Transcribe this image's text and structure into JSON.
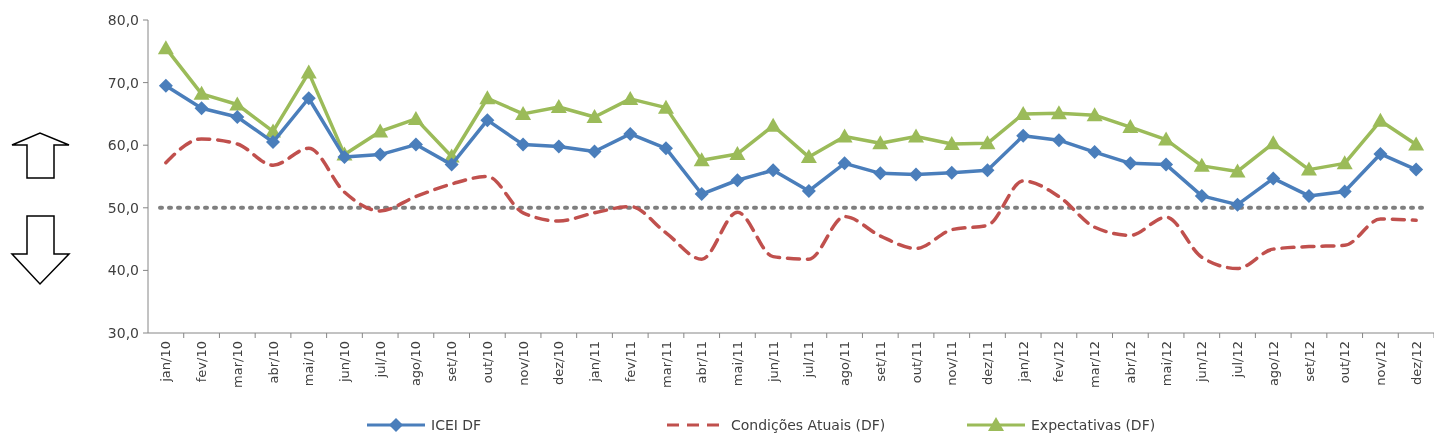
{
  "chart_data": {
    "type": "line",
    "categories": [
      "jan/10",
      "fev/10",
      "mar/10",
      "abr/10",
      "mai/10",
      "jun/10",
      "jul/10",
      "ago/10",
      "set/10",
      "out/10",
      "nov/10",
      "dez/10",
      "jan/11",
      "fev/11",
      "mar/11",
      "abr/11",
      "mai/11",
      "jun/11",
      "jul/11",
      "ago/11",
      "set/11",
      "out/11",
      "nov/11",
      "dez/11",
      "jan/12",
      "fev/12",
      "mar/12",
      "abr/12",
      "mai/12",
      "jun/12",
      "jul/12",
      "ago/12",
      "set/12",
      "out/12",
      "nov/12",
      "dez/12"
    ],
    "series": [
      {
        "name": "ICEI DF",
        "color": "#4a7ebb",
        "marker": "diamond",
        "line_style": "solid",
        "values": [
          69.5,
          65.9,
          64.5,
          60.5,
          67.5,
          58.1,
          58.5,
          60.1,
          56.9,
          64.0,
          60.1,
          59.8,
          59.0,
          61.8,
          59.5,
          52.2,
          54.4,
          56.0,
          52.7,
          57.1,
          55.5,
          55.3,
          55.6,
          56.0,
          61.5,
          60.8,
          58.9,
          57.1,
          56.9,
          51.9,
          50.5,
          54.7,
          51.9,
          52.6,
          58.6,
          56.1
        ]
      },
      {
        "name": "Condições Atuais (DF)",
        "color": "#c0504d",
        "marker": "none",
        "line_style": "dashed",
        "values": [
          57.2,
          61.0,
          60.2,
          56.8,
          59.5,
          52.5,
          49.5,
          51.8,
          53.8,
          55.0,
          49.2,
          47.9,
          49.2,
          50.2,
          46.0,
          41.8,
          49.3,
          42.2,
          41.8,
          48.6,
          45.5,
          43.5,
          46.5,
          47.2,
          54.3,
          51.8,
          46.9,
          45.6,
          48.5,
          42.1,
          40.3,
          43.4,
          43.8,
          44.0,
          48.2,
          48.0
        ]
      },
      {
        "name": "Expectativas (DF)",
        "color": "#9bbb59",
        "marker": "triangle",
        "line_style": "solid",
        "values": [
          75.5,
          68.2,
          66.5,
          62.2,
          71.6,
          58.5,
          62.2,
          64.2,
          58.2,
          67.5,
          65.0,
          66.1,
          64.5,
          67.4,
          66.0,
          57.6,
          58.6,
          63.1,
          58.1,
          61.4,
          60.3,
          61.4,
          60.2,
          60.3,
          65.0,
          65.1,
          64.8,
          62.9,
          60.9,
          56.7,
          55.8,
          60.3,
          56.1,
          57.1,
          63.9,
          60.1
        ]
      }
    ],
    "ylim": [
      30,
      80
    ],
    "yticks": [
      {
        "value": 30,
        "label": "30,0"
      },
      {
        "value": 40,
        "label": "40,0"
      },
      {
        "value": 50,
        "label": "50,0"
      },
      {
        "value": 60,
        "label": "60,0"
      },
      {
        "value": 70,
        "label": "70,0"
      },
      {
        "value": 80,
        "label": "80,0"
      }
    ],
    "ref_lines": [
      {
        "axis": "y",
        "value": 50,
        "color": "#7f7f7f",
        "line_style": "dotted"
      }
    ],
    "grid": false,
    "legend": "bottom"
  }
}
